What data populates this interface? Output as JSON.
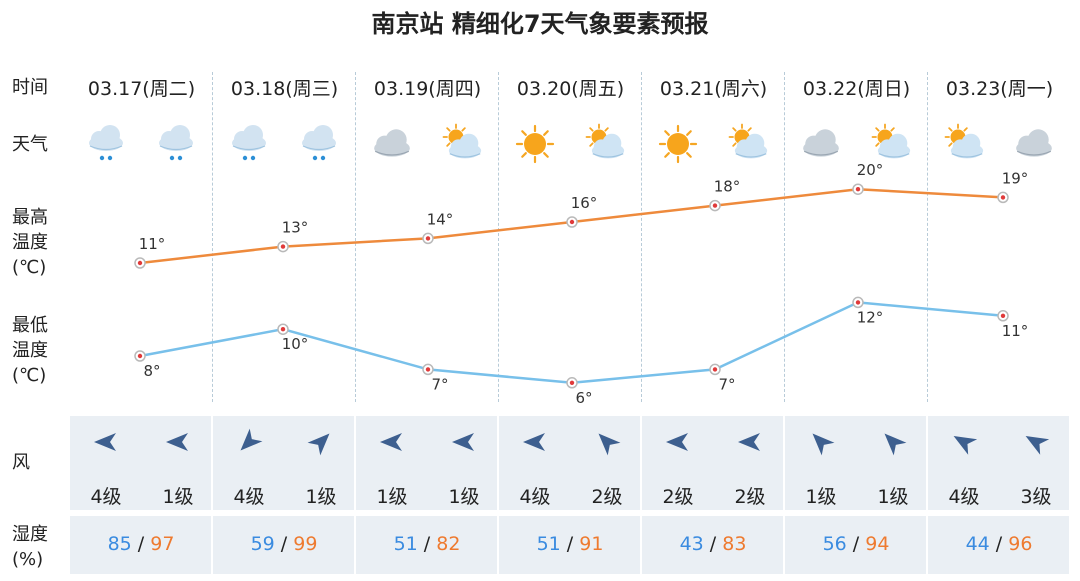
{
  "title": "南京站 精细化7天气象要素预报",
  "labels": {
    "time": "时间",
    "weather": "天气",
    "high_line1": "最高",
    "high_line2": "温度",
    "high_line3": "(℃)",
    "low_line1": "最低",
    "low_line2": "温度",
    "low_line3": "(℃)",
    "wind": "风",
    "hum_line1": "湿度",
    "hum_line2": "(%)"
  },
  "days": [
    {
      "date": "03.17(周二)",
      "icons": [
        "cloud-rain-icon",
        "cloud-rain-icon"
      ],
      "wind": [
        {
          "dir_deg": 270,
          "level": "4级"
        },
        {
          "dir_deg": 270,
          "level": "1级"
        }
      ],
      "humidity": {
        "min": "85",
        "max": "97"
      }
    },
    {
      "date": "03.18(周三)",
      "icons": [
        "cloud-rain-icon",
        "cloud-rain-icon"
      ],
      "wind": [
        {
          "dir_deg": 225,
          "level": "4级"
        },
        {
          "dir_deg": 45,
          "level": "1级"
        }
      ],
      "humidity": {
        "min": "59",
        "max": "99"
      }
    },
    {
      "date": "03.19(周四)",
      "icons": [
        "cloud-icon",
        "sun-cloud-icon"
      ],
      "wind": [
        {
          "dir_deg": 270,
          "level": "1级"
        },
        {
          "dir_deg": 270,
          "level": "1级"
        }
      ],
      "humidity": {
        "min": "51",
        "max": "82"
      }
    },
    {
      "date": "03.20(周五)",
      "icons": [
        "sun-icon",
        "sun-cloud-icon"
      ],
      "wind": [
        {
          "dir_deg": 270,
          "level": "4级"
        },
        {
          "dir_deg": 315,
          "level": "2级"
        }
      ],
      "humidity": {
        "min": "51",
        "max": "91"
      }
    },
    {
      "date": "03.21(周六)",
      "icons": [
        "sun-icon",
        "sun-cloud-icon"
      ],
      "wind": [
        {
          "dir_deg": 270,
          "level": "2级"
        },
        {
          "dir_deg": 270,
          "level": "2级"
        }
      ],
      "humidity": {
        "min": "43",
        "max": "83"
      }
    },
    {
      "date": "03.22(周日)",
      "icons": [
        "cloud-icon",
        "sun-cloud-icon"
      ],
      "wind": [
        {
          "dir_deg": 315,
          "level": "1级"
        },
        {
          "dir_deg": 315,
          "level": "1级"
        }
      ],
      "humidity": {
        "min": "56",
        "max": "94"
      }
    },
    {
      "date": "03.23(周一)",
      "icons": [
        "sun-cloud-icon",
        "cloud-icon"
      ],
      "wind": [
        {
          "dir_deg": 300,
          "level": "4级"
        },
        {
          "dir_deg": 300,
          "level": "3级"
        }
      ],
      "humidity": {
        "min": "44",
        "max": "96"
      }
    }
  ],
  "colors": {
    "high_line": "#ee8a3c",
    "low_line": "#78c0ea",
    "marker": "#e03a3a",
    "humidity_low": "#3a8be0",
    "humidity_high": "#ee7a2f",
    "arrow": "#3d5f8f",
    "panel": "#eaeff4"
  },
  "chart_data": {
    "type": "line",
    "categories": [
      "03.17(周二)",
      "03.18(周三)",
      "03.19(周四)",
      "03.20(周五)",
      "03.21(周六)",
      "03.22(周日)",
      "03.23(周一)"
    ],
    "series": [
      {
        "name": "最高温度",
        "values": [
          11,
          13,
          14,
          16,
          18,
          20,
          19
        ],
        "labels": [
          "11°",
          "13°",
          "14°",
          "16°",
          "18°",
          "20°",
          "19°"
        ]
      },
      {
        "name": "最低温度",
        "values": [
          8,
          10,
          7,
          6,
          7,
          12,
          11
        ],
        "labels": [
          "8°",
          "10°",
          "7°",
          "6°",
          "7°",
          "12°",
          "11°"
        ]
      }
    ],
    "grid": false,
    "legend": "none"
  }
}
